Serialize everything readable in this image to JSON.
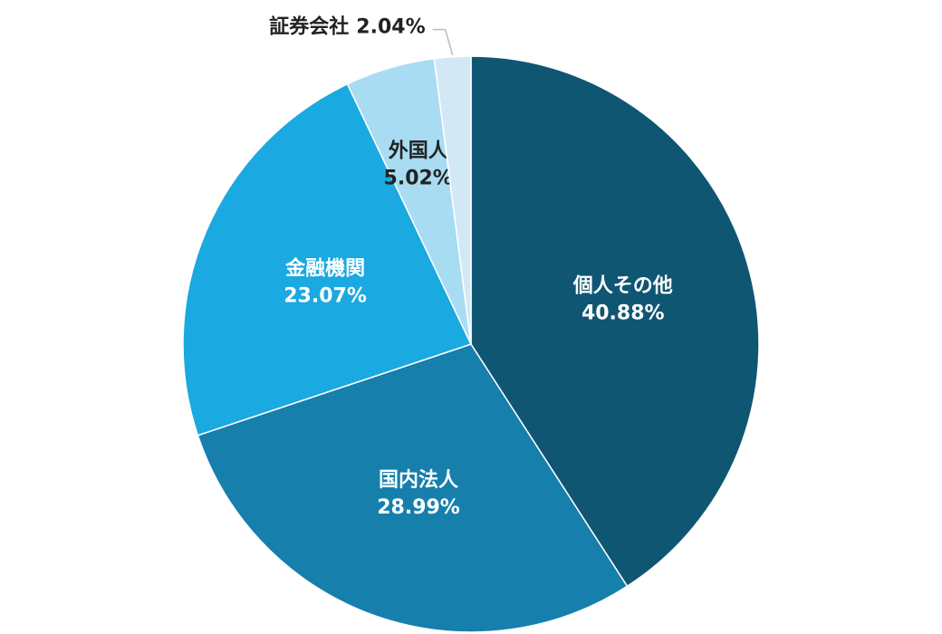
{
  "chart_data": {
    "type": "pie",
    "categories": [
      "個人その他",
      "国内法人",
      "金融機関",
      "外国人",
      "証券会社"
    ],
    "values": [
      40.88,
      28.99,
      23.07,
      5.02,
      2.04
    ],
    "value_labels": [
      "40.88%",
      "28.99%",
      "23.07%",
      "5.02%",
      "2.04%"
    ],
    "colors": [
      "#0f5672",
      "#167fac",
      "#1aa9e0",
      "#a8dcf3",
      "#d3e8f5"
    ]
  }
}
